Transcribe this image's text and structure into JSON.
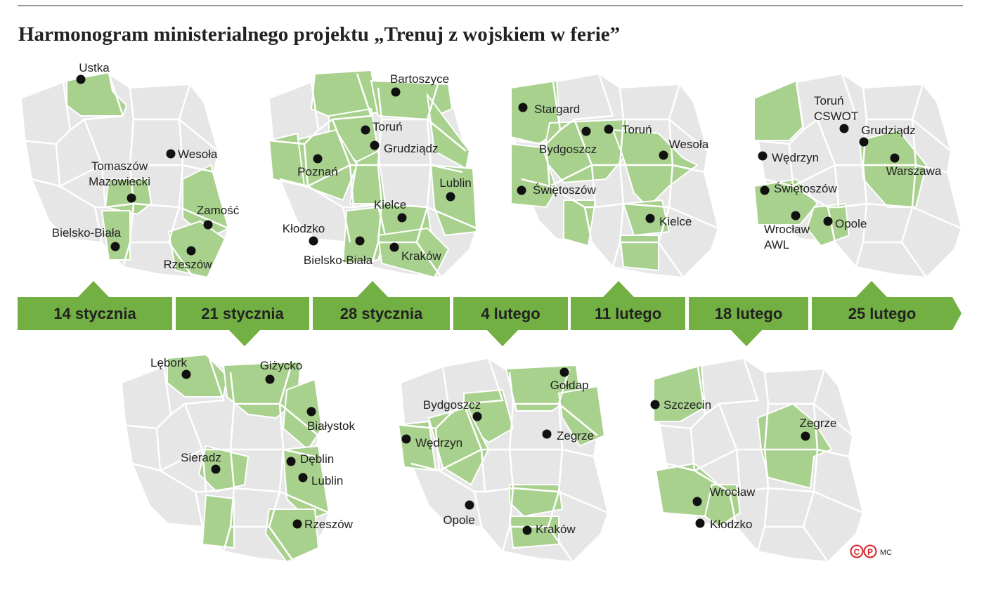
{
  "title": "Harmonogram ministerialnego projektu „Trenuj z wojskiem w ferie”",
  "timeline": [
    {
      "date": "14 stycznia",
      "cities": [
        {
          "label": [
            "Ustka"
          ]
        },
        {
          "label": [
            "Wesoła"
          ]
        },
        {
          "label": [
            "Tomaszów",
            "Mazowiecki"
          ]
        },
        {
          "label": [
            "Zamość"
          ]
        },
        {
          "label": [
            "Bielsko-Biała"
          ]
        },
        {
          "label": [
            "Rzeszów"
          ]
        }
      ]
    },
    {
      "date": "21 stycznia",
      "cities": [
        {
          "label": [
            "Lębork"
          ]
        },
        {
          "label": [
            "Giżycko"
          ]
        },
        {
          "label": [
            "Białystok"
          ]
        },
        {
          "label": [
            "Sieradz"
          ]
        },
        {
          "label": [
            "Dęblin"
          ]
        },
        {
          "label": [
            "Lublin"
          ]
        },
        {
          "label": [
            "Rzeszów"
          ]
        }
      ]
    },
    {
      "date": "28 stycznia",
      "cities": [
        {
          "label": [
            "Bartoszyce"
          ]
        },
        {
          "label": [
            "Toruń"
          ]
        },
        {
          "label": [
            "Grudziądz"
          ]
        },
        {
          "label": [
            "Poznań"
          ]
        },
        {
          "label": [
            "Lublin"
          ]
        },
        {
          "label": [
            "Kielce"
          ]
        },
        {
          "label": [
            "Kłodzko"
          ]
        },
        {
          "label": [
            "Bielsko-Biała"
          ]
        },
        {
          "label": [
            "Kraków"
          ]
        }
      ]
    },
    {
      "date": "4 lutego",
      "cities": [
        {
          "label": [
            "Gołdap"
          ]
        },
        {
          "label": [
            "Bydgoszcz"
          ]
        },
        {
          "label": [
            "Wędrzyn"
          ]
        },
        {
          "label": [
            "Zegrze"
          ]
        },
        {
          "label": [
            "Opole"
          ]
        },
        {
          "label": [
            "Kraków"
          ]
        }
      ]
    },
    {
      "date": "11 lutego",
      "cities": [
        {
          "label": [
            "Stargard"
          ]
        },
        {
          "label": [
            "Bydgoszcz"
          ]
        },
        {
          "label": [
            "Toruń"
          ]
        },
        {
          "label": [
            "Wesoła"
          ]
        },
        {
          "label": [
            "Świętoszów"
          ]
        },
        {
          "label": [
            "Kielce"
          ]
        }
      ]
    },
    {
      "date": "18 lutego",
      "cities": [
        {
          "label": [
            "Szczecin"
          ]
        },
        {
          "label": [
            "Zegrze"
          ]
        },
        {
          "label": [
            "Wrocław"
          ]
        },
        {
          "label": [
            "Kłodzko"
          ]
        }
      ]
    },
    {
      "date": "25 lutego",
      "cities": [
        {
          "label": [
            "Toruń",
            "CSWOT"
          ]
        },
        {
          "label": [
            "Grudziądz"
          ]
        },
        {
          "label": [
            "Wędrzyn"
          ]
        },
        {
          "label": [
            "Warszawa"
          ]
        },
        {
          "label": [
            "Świętoszów"
          ]
        },
        {
          "label": [
            "Wrocław",
            "AWL"
          ]
        },
        {
          "label": [
            "Opole"
          ]
        }
      ]
    }
  ],
  "logo": [
    "C",
    "P"
  ],
  "credit": "MC"
}
